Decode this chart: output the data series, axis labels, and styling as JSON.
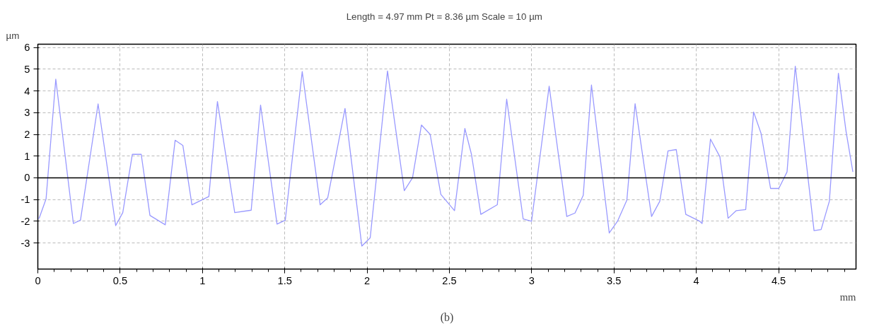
{
  "chart_data": {
    "type": "line",
    "title": "Length = 4.97 mm  Pt = 8.36 µm  Scale = 10 µm",
    "xlabel": "mm",
    "ylabel": "µm",
    "x": [
      0,
      0.009,
      0.05,
      0.109,
      0.216,
      0.259,
      0.366,
      0.473,
      0.516,
      0.574,
      0.628,
      0.681,
      0.774,
      0.834,
      0.881,
      0.936,
      1.039,
      1.091,
      1.196,
      1.296,
      1.353,
      1.453,
      1.503,
      1.606,
      1.715,
      1.761,
      1.866,
      1.968,
      2.019,
      2.124,
      2.226,
      2.276,
      2.33,
      2.383,
      2.448,
      2.531,
      2.594,
      2.634,
      2.691,
      2.791,
      2.848,
      2.948,
      2.999,
      3.106,
      3.213,
      3.263,
      3.313,
      3.363,
      3.471,
      3.521,
      3.578,
      3.628,
      3.728,
      3.778,
      3.828,
      3.878,
      3.936,
      4.021,
      4.035,
      4.086,
      4.143,
      4.193,
      4.243,
      4.3,
      4.348,
      4.393,
      4.451,
      4.501,
      4.551,
      4.601,
      4.715,
      4.758,
      4.808,
      4.863,
      4.909,
      4.951
    ],
    "series": [
      {
        "color": "#9999ff",
        "values": [
          -1.9,
          -1.84,
          -0.97,
          4.54,
          -2.1,
          -1.95,
          3.4,
          -2.2,
          -1.6,
          1.08,
          1.08,
          -1.73,
          -2.16,
          1.73,
          1.49,
          -1.24,
          -0.86,
          3.51,
          -1.6,
          -1.49,
          3.35,
          -2.13,
          -1.95,
          4.89,
          -1.24,
          -0.92,
          3.19,
          -3.14,
          -2.76,
          4.92,
          -0.59,
          0,
          2.43,
          2.0,
          -0.76,
          -1.51,
          2.27,
          1.08,
          -1.68,
          -1.24,
          3.62,
          -1.89,
          -2.0,
          4.22,
          -1.78,
          -1.62,
          -0.81,
          4.27,
          -2.54,
          -2.0,
          -1.03,
          3.41,
          -1.78,
          -1.08,
          1.24,
          1.3,
          -1.68,
          -2.0,
          -2.1,
          1.78,
          0.97,
          -1.86,
          -1.51,
          -1.46,
          3.03,
          2.05,
          -0.49,
          -0.49,
          0.27,
          5.14,
          -2.43,
          -2.38,
          -1.08,
          4.81,
          2.16,
          0.27
        ]
      }
    ],
    "xlim": [
      0,
      4.97
    ],
    "ylim": [
      -4.2,
      6.15
    ],
    "xticks": [
      0,
      0.5,
      1,
      1.5,
      2,
      2.5,
      3,
      3.5,
      4,
      4.5
    ],
    "yticks": [
      -3,
      -2,
      -1,
      0,
      1,
      2,
      3,
      4,
      5,
      6
    ],
    "grid": true,
    "line_style": "solid",
    "ref_lines": [
      {
        "axis": "y",
        "value": 0,
        "color": "#000000"
      }
    ],
    "annotations": [
      "(b)"
    ]
  }
}
